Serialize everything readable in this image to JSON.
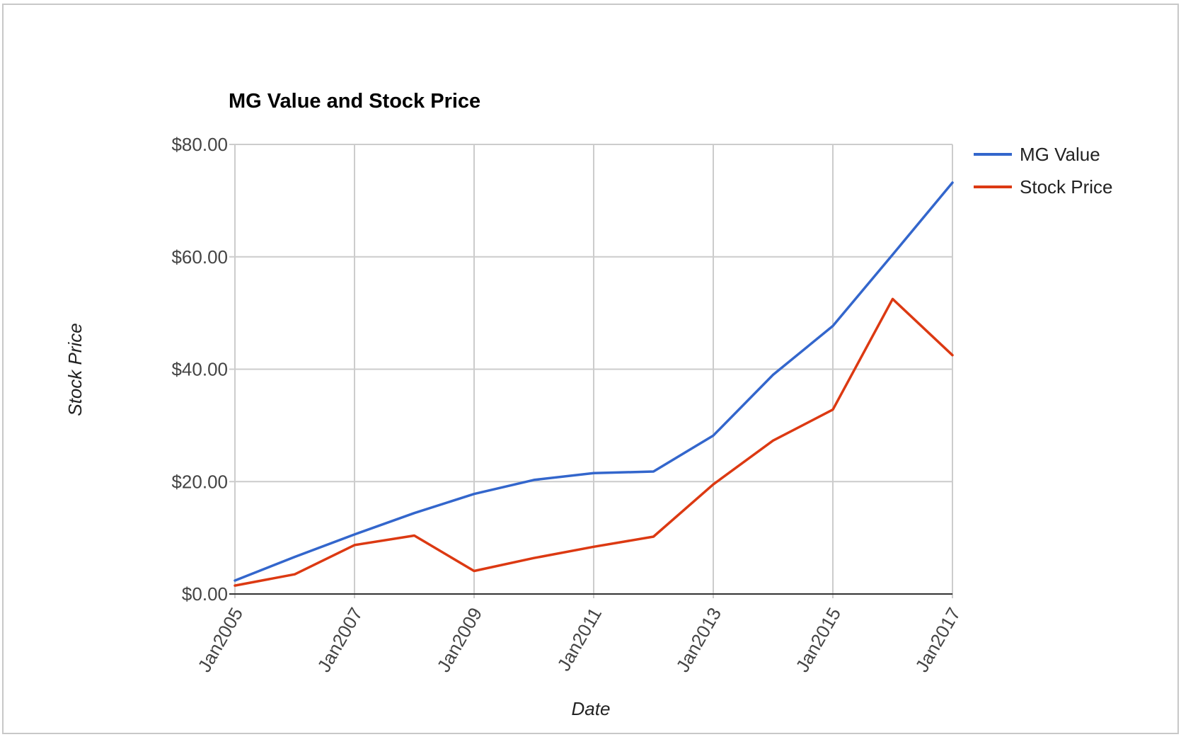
{
  "chart_data": {
    "type": "line",
    "title": "MG Value and Stock Price",
    "xlabel": "Date",
    "ylabel": "Stock Price",
    "x": [
      "Jan2005",
      "Jan2006",
      "Jan2007",
      "Jan2008",
      "Jan2009",
      "Jan2010",
      "Jan2011",
      "Jan2012",
      "Jan2013",
      "Jan2014",
      "Jan2015",
      "Jan2016",
      "Jan2017"
    ],
    "x_tick_labels": [
      "Jan2005",
      "Jan2007",
      "Jan2009",
      "Jan2011",
      "Jan2013",
      "Jan2015",
      "Jan2017"
    ],
    "y_ticks": [
      0,
      20,
      40,
      60,
      80
    ],
    "y_tick_labels": [
      "$0.00",
      "$20.00",
      "$40.00",
      "$60.00",
      "$80.00"
    ],
    "ylim": [
      0,
      80
    ],
    "grid": true,
    "legend": "right",
    "series": [
      {
        "name": "MG Value",
        "color": "#3366cc",
        "values": [
          2.4,
          6.6,
          10.6,
          14.4,
          17.8,
          20.3,
          21.5,
          21.8,
          28.2,
          39.0,
          47.7,
          60.4,
          73.2
        ]
      },
      {
        "name": "Stock Price",
        "color": "#dc3912",
        "values": [
          1.5,
          3.5,
          8.7,
          10.4,
          4.1,
          6.4,
          8.4,
          10.2,
          19.5,
          27.3,
          32.8,
          52.5,
          42.5
        ]
      }
    ]
  }
}
